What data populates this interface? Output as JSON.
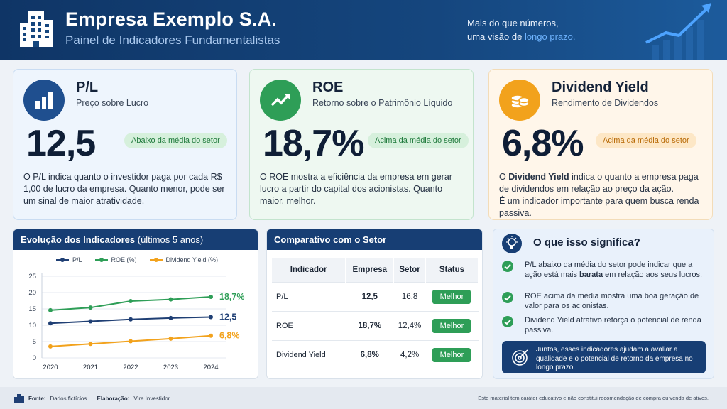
{
  "header": {
    "title": "Empresa Exemplo S.A.",
    "subtitle": "Painel de Indicadores Fundamentalistas",
    "tagline_line1": "Mais do que números,",
    "tagline_line2_prefix": "uma visão de ",
    "tagline_line2_accent": "longo prazo."
  },
  "kpis": {
    "pl": {
      "name": "P/L",
      "desc": "Preço sobre Lucro",
      "value": "12,5",
      "badge": "Abaixo da média do setor",
      "text": "O P/L indica quanto o investidor paga por cada R$ 1,00 de lucro da empresa. Quanto menor, pode ser um sinal de maior atratividade."
    },
    "roe": {
      "name": "ROE",
      "desc": "Retorno sobre o Patrimônio Líquido",
      "value": "18,7%",
      "badge": "Acima da média do setor",
      "text": "O ROE mostra a eficiência da empresa em gerar lucro a partir do capital dos acionistas. Quanto maior, melhor."
    },
    "dy": {
      "name": "Dividend Yield",
      "desc": "Rendimento de Dividendos",
      "value": "6,8%",
      "badge": "Acima da média do setor",
      "text_prefix": "O ",
      "text_bold": "Dividend Yield",
      "text_rest": " indica o quanto a empresa paga de dividendos em relação ao preço da ação.",
      "text_line2": "É um indicador importante para quem busca renda passiva."
    }
  },
  "evolution": {
    "title": "Evolução dos Indicadores",
    "title_suffix": "(últimos 5 anos)",
    "legend": [
      "P/L",
      "ROE (%)",
      "Dividend Yield (%)"
    ]
  },
  "chart_data": {
    "type": "line",
    "title": "Evolução dos Indicadores (últimos 5 anos)",
    "x": [
      "2020",
      "2021",
      "2022",
      "2023",
      "2024"
    ],
    "ylim": [
      0,
      25
    ],
    "yticks": [
      0,
      5,
      10,
      15,
      20,
      25
    ],
    "series": [
      {
        "name": "P/L",
        "color": "#1f3f74",
        "values": [
          10.6,
          11.2,
          11.8,
          12.2,
          12.5
        ],
        "end_label": "12,5"
      },
      {
        "name": "ROE (%)",
        "color": "#2e9e57",
        "values": [
          14.6,
          15.4,
          17.4,
          17.9,
          18.7
        ],
        "end_label": "18,7%"
      },
      {
        "name": "Dividend Yield (%)",
        "color": "#f2a21c",
        "values": [
          3.5,
          4.3,
          5.1,
          5.9,
          6.8
        ],
        "end_label": "6,8%"
      }
    ],
    "grid": true,
    "legend_position": "top"
  },
  "comparison": {
    "title": "Comparativo com o Setor",
    "headers": [
      "Indicador",
      "Empresa",
      "Setor",
      "Status"
    ],
    "rows": [
      {
        "indicador": "P/L",
        "empresa": "12,5",
        "setor": "16,8",
        "status": "Melhor"
      },
      {
        "indicador": "ROE",
        "empresa": "18,7%",
        "setor": "12,4%",
        "status": "Melhor"
      },
      {
        "indicador": "Dividend Yield",
        "empresa": "6,8%",
        "setor": "4,2%",
        "status": "Melhor"
      }
    ]
  },
  "meaning": {
    "title": "O que isso significa?",
    "items": [
      {
        "a": "P/L abaixo da média do setor pode indicar que a ação está mais ",
        "b": "barata",
        "c": " em relação aos seus lucros."
      },
      {
        "a": "ROE acima da média mostra uma boa geração de valor para os acionistas.",
        "b": "",
        "c": ""
      },
      {
        "a": "Dividend Yield atrativo reforça o potencial de renda passiva.",
        "b": "",
        "c": ""
      }
    ],
    "callout": "Juntos, esses indicadores ajudam a avaliar a qualidade e o potencial de retorno da empresa no longo prazo."
  },
  "footer": {
    "fonte_label": "Fonte:",
    "fonte_value": "Dados fictícios",
    "sep": "|",
    "elab_label": "Elaboração:",
    "elab_value": "Vire Investidor",
    "disclaimer": "Este material tem caráter educativo e não constitui recomendação de compra ou venda de ativos."
  }
}
